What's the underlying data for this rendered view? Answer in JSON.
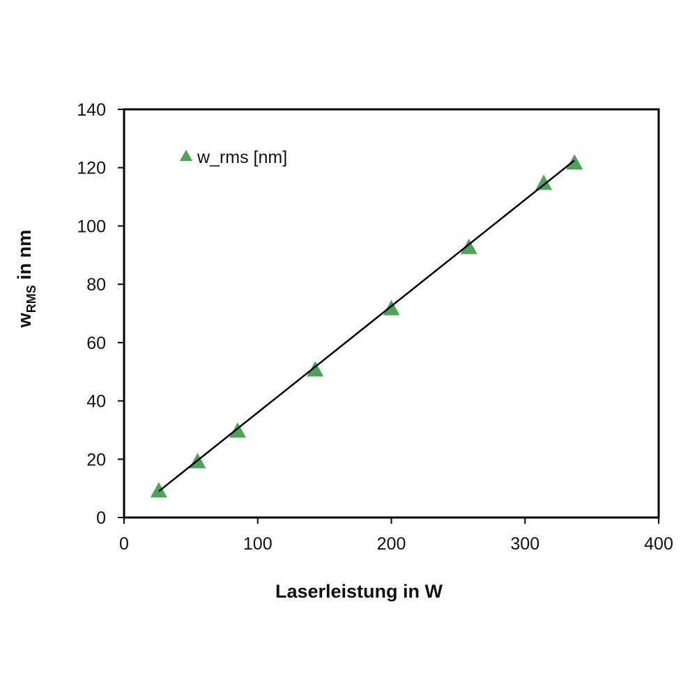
{
  "chart_data": {
    "type": "scatter",
    "xlabel": "Laserleistung in W",
    "ylabel": {
      "main": "w",
      "subscript": "RMS",
      "suffix": " in nm"
    },
    "xlim": [
      0,
      400
    ],
    "ylim": [
      0,
      140
    ],
    "x_ticks": [
      0,
      100,
      200,
      300,
      400
    ],
    "y_ticks": [
      0,
      20,
      40,
      60,
      80,
      100,
      120,
      140
    ],
    "grid": false,
    "legend": {
      "position": "top-left",
      "entries": [
        "w_rms [nm]"
      ]
    },
    "series": [
      {
        "name": "w_rms [nm]",
        "marker": "triangle",
        "color": "#4ea35a",
        "x": [
          26,
          55,
          85,
          143,
          200,
          258,
          314,
          337
        ],
        "y": [
          9.5,
          19.5,
          30,
          51,
          72,
          93,
          115,
          122
        ]
      }
    ],
    "fit_line": {
      "color": "#000000",
      "from": [
        26,
        9
      ],
      "to": [
        337,
        122.5
      ]
    }
  }
}
